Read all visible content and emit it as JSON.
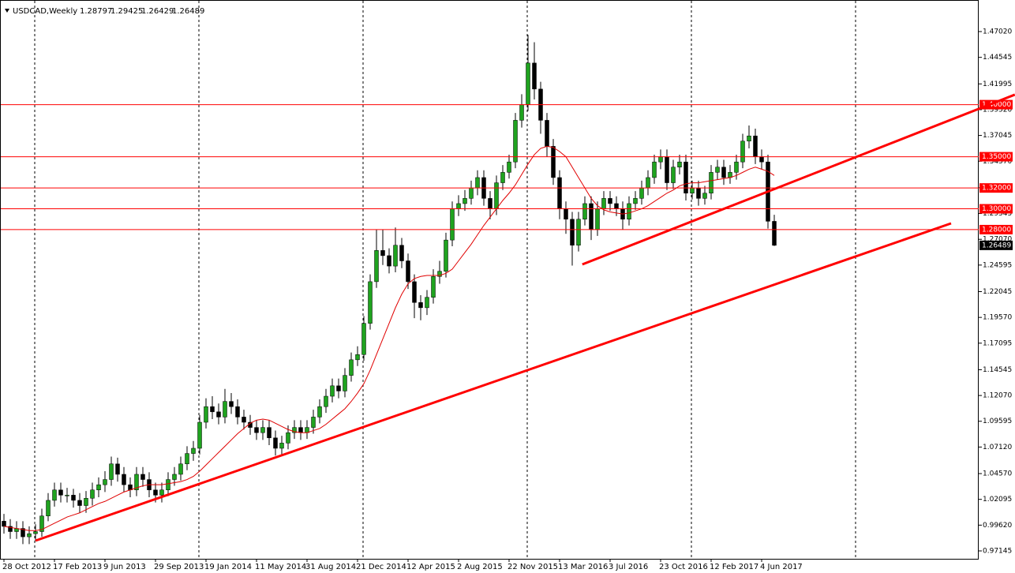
{
  "chart_data": {
    "type": "candlestick",
    "title": "USDCAD,Weekly",
    "categories": [
      "28 Oct 2012",
      null,
      null,
      null,
      null,
      null,
      null,
      null,
      "17 Feb 2013",
      null,
      null,
      null,
      null,
      null,
      null,
      null,
      "9 Jun 2013",
      null,
      null,
      null,
      null,
      null,
      null,
      null,
      "29 Sep 2013",
      null,
      null,
      null,
      null,
      null,
      null,
      null,
      "19 Jan 2014",
      null,
      null,
      null,
      null,
      null,
      null,
      null,
      "11 May 2014",
      null,
      null,
      null,
      null,
      null,
      null,
      null,
      "31 Aug 2014",
      null,
      null,
      null,
      null,
      null,
      null,
      null,
      "21 Dec 2014",
      null,
      null,
      null,
      null,
      null,
      null,
      null,
      "12 Apr 2015",
      null,
      null,
      null,
      null,
      null,
      null,
      null,
      "2 Aug 2015",
      null,
      null,
      null,
      null,
      null,
      null,
      null,
      "22 Nov 2015",
      null,
      null,
      null,
      null,
      null,
      null,
      null,
      "13 Mar 2016",
      null,
      null,
      null,
      null,
      null,
      null,
      null,
      "3 Jul 2016",
      null,
      null,
      null,
      null,
      null,
      null,
      null,
      "23 Oct 2016",
      null,
      null,
      null,
      null,
      null,
      null,
      null,
      "12 Feb 2017",
      null,
      null,
      null,
      null,
      null,
      null,
      null,
      "4 Jun 2017",
      null,
      null
    ],
    "open": [
      1.0,
      0.995,
      0.99,
      0.993,
      0.985,
      0.988,
      0.99,
      1.005,
      1.02,
      1.03,
      1.025,
      1.025,
      1.02,
      1.015,
      1.022,
      1.03,
      1.035,
      1.04,
      1.055,
      1.045,
      1.035,
      1.03,
      1.045,
      1.04,
      1.03,
      1.025,
      1.03,
      1.04,
      1.045,
      1.055,
      1.065,
      1.07,
      1.095,
      1.11,
      1.105,
      1.1,
      1.115,
      1.11,
      1.1,
      1.095,
      1.09,
      1.085,
      1.09,
      1.08,
      1.07,
      1.075,
      1.085,
      1.09,
      1.085,
      1.09,
      1.1,
      1.11,
      1.12,
      1.13,
      1.125,
      1.14,
      1.155,
      1.16,
      1.19,
      1.23,
      1.26,
      1.255,
      1.245,
      1.265,
      1.25,
      1.23,
      1.21,
      1.205,
      1.215,
      1.235,
      1.24,
      1.27,
      1.3,
      1.305,
      1.31,
      1.32,
      1.33,
      1.31,
      1.3,
      1.325,
      1.335,
      1.345,
      1.385,
      1.4,
      1.44,
      1.415,
      1.385,
      1.36,
      1.33,
      1.3,
      1.29,
      1.265,
      1.29,
      1.305,
      1.28,
      1.3,
      1.31,
      1.305,
      1.3,
      1.29,
      1.305,
      1.31,
      1.32,
      1.33,
      1.345,
      1.35,
      1.325,
      1.34,
      1.345,
      1.315,
      1.32,
      1.31,
      1.315,
      1.335,
      1.34,
      1.33,
      1.335,
      1.345,
      1.365,
      1.37,
      1.35,
      1.345,
      1.28797
    ],
    "high": [
      1.007,
      1.002,
      1.0,
      1.0,
      0.995,
      0.997,
      1.012,
      1.027,
      1.037,
      1.037,
      1.032,
      1.031,
      1.027,
      1.029,
      1.037,
      1.042,
      1.048,
      1.062,
      1.061,
      1.052,
      1.042,
      1.052,
      1.052,
      1.047,
      1.037,
      1.037,
      1.047,
      1.052,
      1.062,
      1.072,
      1.077,
      1.102,
      1.118,
      1.12,
      1.113,
      1.127,
      1.123,
      1.117,
      1.107,
      1.102,
      1.097,
      1.097,
      1.097,
      1.087,
      1.082,
      1.092,
      1.097,
      1.097,
      1.097,
      1.107,
      1.117,
      1.127,
      1.137,
      1.137,
      1.147,
      1.162,
      1.168,
      1.197,
      1.237,
      1.28,
      1.28,
      1.262,
      1.282,
      1.272,
      1.257,
      1.237,
      1.217,
      1.222,
      1.242,
      1.25,
      1.277,
      1.307,
      1.313,
      1.318,
      1.327,
      1.337,
      1.337,
      1.317,
      1.332,
      1.342,
      1.352,
      1.392,
      1.41,
      1.467,
      1.46,
      1.422,
      1.392,
      1.367,
      1.337,
      1.307,
      1.297,
      1.297,
      1.312,
      1.312,
      1.307,
      1.317,
      1.317,
      1.312,
      1.307,
      1.312,
      1.317,
      1.327,
      1.337,
      1.352,
      1.357,
      1.357,
      1.347,
      1.352,
      1.352,
      1.327,
      1.327,
      1.322,
      1.342,
      1.347,
      1.347,
      1.342,
      1.352,
      1.372,
      1.38,
      1.377,
      1.357,
      1.352,
      1.29425
    ],
    "low": [
      0.988,
      0.983,
      0.983,
      0.978,
      0.978,
      0.981,
      0.985,
      1.0,
      1.014,
      1.018,
      1.018,
      1.013,
      1.008,
      1.008,
      1.015,
      1.023,
      1.028,
      1.034,
      1.038,
      1.028,
      1.023,
      1.024,
      1.033,
      1.023,
      1.018,
      1.018,
      1.024,
      1.034,
      1.039,
      1.049,
      1.058,
      1.064,
      1.089,
      1.098,
      1.093,
      1.094,
      1.103,
      1.093,
      1.088,
      1.083,
      1.078,
      1.078,
      1.073,
      1.063,
      1.064,
      1.069,
      1.079,
      1.078,
      1.079,
      1.084,
      1.094,
      1.104,
      1.114,
      1.118,
      1.119,
      1.134,
      1.149,
      1.154,
      1.184,
      1.224,
      1.246,
      1.238,
      1.239,
      1.243,
      1.223,
      1.195,
      1.193,
      1.198,
      1.209,
      1.228,
      1.234,
      1.264,
      1.293,
      1.298,
      1.304,
      1.313,
      1.303,
      1.29,
      1.294,
      1.318,
      1.329,
      1.339,
      1.378,
      1.394,
      1.405,
      1.372,
      1.35,
      1.323,
      1.29,
      1.276,
      1.2455,
      1.259,
      1.284,
      1.27,
      1.274,
      1.294,
      1.298,
      1.293,
      1.28,
      1.284,
      1.299,
      1.304,
      1.313,
      1.324,
      1.338,
      1.318,
      1.319,
      1.333,
      1.308,
      1.309,
      1.303,
      1.304,
      1.309,
      1.328,
      1.323,
      1.324,
      1.328,
      1.339,
      1.358,
      1.343,
      1.338,
      1.281,
      1.26429
    ],
    "close": [
      0.995,
      0.99,
      0.993,
      0.985,
      0.988,
      0.99,
      1.005,
      1.02,
      1.03,
      1.025,
      1.025,
      1.02,
      1.015,
      1.022,
      1.03,
      1.035,
      1.04,
      1.055,
      1.045,
      1.035,
      1.03,
      1.045,
      1.04,
      1.03,
      1.025,
      1.03,
      1.04,
      1.045,
      1.055,
      1.065,
      1.07,
      1.095,
      1.11,
      1.105,
      1.1,
      1.115,
      1.11,
      1.1,
      1.095,
      1.09,
      1.085,
      1.09,
      1.08,
      1.07,
      1.075,
      1.085,
      1.09,
      1.085,
      1.09,
      1.1,
      1.11,
      1.12,
      1.13,
      1.125,
      1.14,
      1.155,
      1.16,
      1.19,
      1.23,
      1.26,
      1.255,
      1.245,
      1.265,
      1.25,
      1.23,
      1.21,
      1.205,
      1.215,
      1.235,
      1.24,
      1.27,
      1.3,
      1.305,
      1.31,
      1.32,
      1.33,
      1.31,
      1.3,
      1.325,
      1.335,
      1.345,
      1.385,
      1.4,
      1.44,
      1.415,
      1.385,
      1.36,
      1.33,
      1.3,
      1.29,
      1.265,
      1.29,
      1.305,
      1.28,
      1.3,
      1.31,
      1.305,
      1.3,
      1.29,
      1.305,
      1.31,
      1.32,
      1.33,
      1.345,
      1.35,
      1.325,
      1.34,
      1.345,
      1.315,
      1.32,
      1.31,
      1.315,
      1.335,
      1.34,
      1.33,
      1.335,
      1.345,
      1.365,
      1.37,
      1.35,
      1.345,
      1.288,
      1.26489
    ],
    "bull_color": "#1fa31f",
    "bear_color": "#000000",
    "ma": {
      "color": "#e00000",
      "values": [
        0.995,
        0.994,
        0.993,
        0.992,
        0.991,
        0.991,
        0.992,
        0.995,
        0.998,
        1.001,
        1.004,
        1.006,
        1.008,
        1.011,
        1.014,
        1.017,
        1.019,
        1.022,
        1.025,
        1.028,
        1.03,
        1.032,
        1.034,
        1.035,
        1.035,
        1.035,
        1.036,
        1.037,
        1.038,
        1.04,
        1.043,
        1.048,
        1.054,
        1.06,
        1.066,
        1.072,
        1.078,
        1.084,
        1.089,
        1.094,
        1.097,
        1.098,
        1.097,
        1.094,
        1.091,
        1.088,
        1.086,
        1.085,
        1.085,
        1.087,
        1.089,
        1.093,
        1.098,
        1.103,
        1.108,
        1.115,
        1.123,
        1.132,
        1.145,
        1.16,
        1.175,
        1.19,
        1.205,
        1.218,
        1.228,
        1.233,
        1.235,
        1.236,
        1.236,
        1.236,
        1.238,
        1.242,
        1.25,
        1.258,
        1.266,
        1.275,
        1.284,
        1.292,
        1.3,
        1.308,
        1.315,
        1.323,
        1.333,
        1.343,
        1.352,
        1.358,
        1.36,
        1.359,
        1.355,
        1.35,
        1.34,
        1.33,
        1.32,
        1.31,
        1.303,
        1.299,
        1.297,
        1.296,
        1.295,
        1.296,
        1.298,
        1.3,
        1.303,
        1.307,
        1.311,
        1.315,
        1.318,
        1.322,
        1.324,
        1.325,
        1.325,
        1.326,
        1.327,
        1.328,
        1.329,
        1.33,
        1.332,
        1.335,
        1.338,
        1.34,
        1.338,
        1.336,
        1.332
      ]
    },
    "levels": [
      {
        "value": 1.4,
        "label": "1.40000"
      },
      {
        "value": 1.35,
        "label": "1.35000"
      },
      {
        "value": 1.32,
        "label": "1.32000"
      },
      {
        "value": 1.3,
        "label": "1.30000"
      },
      {
        "value": 1.28,
        "label": "1.28000"
      }
    ],
    "level_color": "#ff0000",
    "trendlines": [
      {
        "x": [
          5,
          150
        ],
        "y": [
          0.9813,
          1.286
        ]
      },
      {
        "x": [
          91.6,
          160.1
        ],
        "y": [
          1.2466,
          1.4096
        ]
      }
    ],
    "trendline_color": "#ff0000",
    "ylim": [
      0.96387,
      1.50052
    ],
    "yticks": [
      {
        "value": 1.4702,
        "label": "1.47020"
      },
      1.44545,
      1.41995,
      {
        "value": 1.3952,
        "label": "1.39520"
      },
      1.37045,
      {
        "value": 1.3457,
        "label": "1.34570"
      },
      {
        "value": 1.3202,
        "label": "1.32020"
      },
      1.29545,
      {
        "value": 1.2707,
        "label": "1.27070"
      },
      1.24595,
      1.22045,
      {
        "value": 1.1957,
        "label": "1.19570"
      },
      1.17095,
      1.14545,
      {
        "value": 1.1207,
        "label": "1.12070"
      },
      1.09595,
      {
        "value": 1.0712,
        "label": "1.07120"
      },
      {
        "value": 1.0457,
        "label": "1.04570"
      },
      1.02095,
      {
        "value": 0.9962,
        "label": "0.99620"
      },
      0.97145
    ]
  }
}
